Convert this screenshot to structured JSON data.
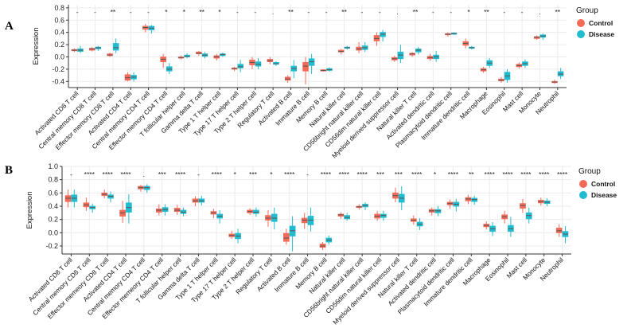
{
  "colors": {
    "control": "#f46a59",
    "disease": "#22bcd0",
    "grid": "#ebebeb",
    "axis": "#333333"
  },
  "chart_data": [
    {
      "type": "boxplot",
      "panel": "A",
      "ylabel": "Expression",
      "ylim": [
        -0.5,
        0.85
      ],
      "yticks": [
        -0.4,
        -0.2,
        0.0,
        0.2,
        0.4,
        0.6,
        0.8
      ],
      "ytick_labels": [
        "-0.4",
        "-0.2",
        "0.0",
        "0.2",
        "0.4",
        "0.6",
        "0.8"
      ],
      "legend": {
        "title": "Group",
        "entries": [
          "Control",
          "Disease"
        ]
      },
      "categories": [
        "Activated CD8 T cell",
        "Central memory CD8 T cell",
        "Effector memory CD8 T cell",
        "Activated CD4 T cell",
        "Central memory CD4 T cell",
        "Effector memory CD4 T cell",
        "T follicular helper cell",
        "Gamma delta T cell",
        "Type 1 T helper cell",
        "Type 17 T helper cell",
        "Type 2 T helper cell",
        "Regulatory T cell",
        "Activated B cell",
        "Immature B cell",
        "Memory B cell",
        "Natural killer cell",
        "CD56bright natural killer cell",
        "CD56dim natural killer cell",
        "Myeloid derived suppressor cell",
        "Natural killer T cell",
        "Activated dendritic cell",
        "Plasmacytoid dendritic cell",
        "Immature dendritic cell",
        "Macrophage",
        "Eosinophil",
        "Mast cell",
        "Monocyte",
        "Neutrophil"
      ],
      "significance": [
        "-",
        "-",
        "**",
        "-",
        "-",
        "*",
        "*",
        "**",
        "*",
        "-",
        "-",
        ".",
        "**",
        "-",
        "-",
        "**",
        "-",
        "-",
        ".",
        "**",
        "-",
        "-",
        "*",
        "**",
        "-",
        "-",
        ".",
        "**"
      ],
      "series": [
        {
          "name": "Control",
          "boxes": [
            [
              0.08,
              0.1,
              0.11,
              0.12,
              0.14
            ],
            [
              0.09,
              0.11,
              0.13,
              0.14,
              0.16
            ],
            [
              0.0,
              0.02,
              0.03,
              0.05,
              0.07
            ],
            [
              -0.4,
              -0.38,
              -0.34,
              -0.29,
              -0.25
            ],
            [
              0.4,
              0.45,
              0.48,
              0.5,
              0.54
            ],
            [
              -0.18,
              -0.08,
              -0.04,
              0.0,
              0.05
            ],
            [
              -0.04,
              -0.02,
              -0.01,
              0.0,
              0.02
            ],
            [
              0.02,
              0.05,
              0.06,
              0.08,
              0.1
            ],
            [
              -0.06,
              -0.02,
              0.0,
              0.02,
              0.05
            ],
            [
              -0.23,
              -0.2,
              -0.19,
              -0.18,
              -0.16
            ],
            [
              -0.2,
              -0.13,
              -0.09,
              -0.05,
              0.0
            ],
            [
              -0.12,
              -0.08,
              -0.06,
              -0.04,
              0.0
            ],
            [
              -0.42,
              -0.38,
              -0.36,
              -0.33,
              -0.3
            ],
            [
              -0.45,
              -0.23,
              -0.15,
              -0.09,
              0.0
            ],
            [
              -0.24,
              -0.23,
              -0.22,
              -0.21,
              -0.2
            ],
            [
              0.04,
              0.08,
              0.09,
              0.11,
              0.13
            ],
            [
              0.06,
              0.11,
              0.13,
              0.16,
              0.24
            ],
            [
              0.18,
              0.26,
              0.3,
              0.35,
              0.4
            ],
            [
              -0.08,
              -0.05,
              -0.03,
              -0.01,
              0.02
            ],
            [
              0.0,
              0.03,
              0.05,
              0.06,
              0.08
            ],
            [
              -0.06,
              -0.03,
              -0.01,
              0.01,
              0.05
            ],
            [
              0.33,
              0.36,
              0.37,
              0.38,
              0.4
            ],
            [
              0.14,
              0.19,
              0.22,
              0.25,
              0.3
            ],
            [
              -0.26,
              -0.23,
              -0.21,
              -0.19,
              -0.16
            ],
            [
              -0.42,
              -0.39,
              -0.38,
              -0.36,
              -0.33
            ],
            [
              -0.19,
              -0.16,
              -0.14,
              -0.12,
              -0.09
            ],
            [
              0.28,
              0.3,
              0.32,
              0.33,
              0.35
            ],
            [
              -0.44,
              -0.42,
              -0.41,
              -0.4,
              -0.37
            ]
          ]
        },
        {
          "name": "Disease",
          "boxes": [
            [
              0.06,
              0.09,
              0.11,
              0.13,
              0.18
            ],
            [
              0.1,
              0.13,
              0.15,
              0.16,
              0.18
            ],
            [
              0.06,
              0.11,
              0.15,
              0.22,
              0.3
            ],
            [
              -0.4,
              -0.36,
              -0.33,
              -0.3,
              -0.25
            ],
            [
              0.38,
              0.44,
              0.47,
              0.5,
              0.52
            ],
            [
              -0.28,
              -0.23,
              -0.2,
              -0.16,
              -0.1
            ],
            [
              -0.02,
              0.0,
              0.01,
              0.03,
              0.06
            ],
            [
              -0.02,
              0.01,
              0.03,
              0.05,
              0.08
            ],
            [
              0.0,
              0.02,
              0.04,
              0.05,
              0.07
            ],
            [
              -0.25,
              -0.18,
              -0.16,
              -0.12,
              -0.05
            ],
            [
              -0.2,
              -0.15,
              -0.12,
              -0.08,
              -0.02
            ],
            [
              -0.15,
              -0.12,
              -0.11,
              -0.09,
              -0.07
            ],
            [
              -0.35,
              -0.23,
              -0.19,
              -0.15,
              -0.05
            ],
            [
              -0.28,
              -0.14,
              -0.08,
              -0.03,
              0.05
            ],
            [
              -0.24,
              -0.22,
              -0.21,
              -0.19,
              -0.17
            ],
            [
              0.12,
              0.14,
              0.15,
              0.16,
              0.18
            ],
            [
              0.08,
              0.12,
              0.15,
              0.18,
              0.24
            ],
            [
              0.25,
              0.33,
              0.37,
              0.4,
              0.44
            ],
            [
              -0.1,
              -0.03,
              0.03,
              0.08,
              0.2
            ],
            [
              0.04,
              0.08,
              0.11,
              0.13,
              0.16
            ],
            [
              -0.08,
              -0.03,
              0.0,
              0.03,
              0.1
            ],
            [
              0.36,
              0.37,
              0.38,
              0.39,
              0.4
            ],
            [
              0.12,
              0.14,
              0.15,
              0.16,
              0.18
            ],
            [
              -0.18,
              -0.14,
              -0.1,
              -0.06,
              -0.02
            ],
            [
              -0.42,
              -0.37,
              -0.31,
              -0.25,
              -0.2
            ],
            [
              -0.18,
              -0.14,
              -0.11,
              -0.08,
              -0.04
            ],
            [
              0.28,
              0.32,
              0.34,
              0.36,
              0.38
            ],
            [
              -0.36,
              -0.31,
              -0.28,
              -0.24,
              -0.18
            ]
          ]
        }
      ]
    },
    {
      "type": "boxplot",
      "panel": "B",
      "ylabel": "Expression",
      "ylim": [
        -0.32,
        1.0
      ],
      "yticks": [
        -0.2,
        0.0,
        0.2,
        0.4,
        0.6,
        0.8,
        1.0
      ],
      "ytick_labels": [
        "-0.2",
        "0.0",
        "0.2",
        "0.4",
        "0.6",
        "0.8",
        "1.0"
      ],
      "legend": {
        "title": "Group",
        "entries": [
          "Control",
          "Disease"
        ]
      },
      "categories": [
        "Activated CD8 T cell",
        "Central memory CD8 T cell",
        "Effector memeory CD8 T cell",
        "Activated CD4 T cell",
        "Central memory CD4 T cell",
        "Effector memeory CD4 T cell",
        "T follicular helper cell",
        "Gamma delta T cell",
        "Type 1 T helper cell",
        "Type 17 T helper cell",
        "Type 2 T helper cell",
        "Regulatory T cell",
        "Activated B cell",
        "Immature B cell",
        "Memory B cell",
        "Natural killer cell",
        "CD56bright natural killer cell",
        "CD56dim natural killer cell",
        "Myeloid derived suppressor cell",
        "Natural killer T cell",
        "Activated dendritic cell",
        "Plasmacytoid dendritic cell",
        "Immature dendritic cell",
        "Macrophage",
        "Eosinophil",
        "Mast cell",
        "Monocyte",
        "Neutrophil"
      ],
      "significance": [
        "-",
        "****",
        "****",
        "****",
        ".",
        "***",
        "****",
        "-",
        "****",
        "*",
        "***",
        "*",
        "****",
        "-",
        "****",
        "****",
        "****",
        "***",
        "***",
        "****",
        "*",
        "****",
        "**",
        "****",
        "****",
        "****",
        "****",
        "****"
      ],
      "series": [
        {
          "name": "Control",
          "boxes": [
            [
              0.38,
              0.47,
              0.52,
              0.56,
              0.65
            ],
            [
              0.33,
              0.39,
              0.42,
              0.45,
              0.53
            ],
            [
              0.52,
              0.56,
              0.58,
              0.6,
              0.65
            ],
            [
              0.15,
              0.25,
              0.3,
              0.34,
              0.48
            ],
            [
              0.62,
              0.66,
              0.68,
              0.7,
              0.72
            ],
            [
              0.26,
              0.31,
              0.34,
              0.36,
              0.43
            ],
            [
              0.27,
              0.32,
              0.34,
              0.37,
              0.42
            ],
            [
              0.4,
              0.46,
              0.48,
              0.51,
              0.55
            ],
            [
              0.22,
              0.28,
              0.3,
              0.32,
              0.36
            ],
            [
              -0.09,
              -0.06,
              -0.04,
              -0.02,
              0.03
            ],
            [
              0.27,
              0.3,
              0.32,
              0.34,
              0.37
            ],
            [
              0.09,
              0.19,
              0.22,
              0.26,
              0.34
            ],
            [
              -0.18,
              -0.13,
              -0.08,
              -0.01,
              0.06
            ],
            [
              0.06,
              0.15,
              0.19,
              0.22,
              0.3
            ],
            [
              -0.26,
              -0.22,
              -0.2,
              -0.17,
              -0.14
            ],
            [
              0.21,
              0.25,
              0.27,
              0.28,
              0.31
            ],
            [
              0.35,
              0.38,
              0.39,
              0.4,
              0.43
            ],
            [
              0.18,
              0.22,
              0.25,
              0.28,
              0.33
            ],
            [
              0.46,
              0.52,
              0.56,
              0.6,
              0.68
            ],
            [
              0.12,
              0.17,
              0.19,
              0.21,
              0.26
            ],
            [
              0.26,
              0.31,
              0.33,
              0.35,
              0.38
            ],
            [
              0.36,
              0.42,
              0.44,
              0.46,
              0.5
            ],
            [
              0.43,
              0.48,
              0.51,
              0.53,
              0.57
            ],
            [
              0.05,
              0.09,
              0.11,
              0.13,
              0.17
            ],
            [
              0.14,
              0.21,
              0.24,
              0.27,
              0.33
            ],
            [
              0.3,
              0.37,
              0.41,
              0.44,
              0.51
            ],
            [
              0.41,
              0.45,
              0.47,
              0.49,
              0.53
            ],
            [
              -0.06,
              0.0,
              0.03,
              0.07,
              0.13
            ]
          ]
        },
        {
          "name": "Disease",
          "boxes": [
            [
              0.38,
              0.47,
              0.52,
              0.57,
              0.65
            ],
            [
              0.3,
              0.36,
              0.38,
              0.4,
              0.44
            ],
            [
              0.46,
              0.52,
              0.55,
              0.57,
              0.62
            ],
            [
              0.14,
              0.31,
              0.38,
              0.45,
              0.58
            ],
            [
              0.6,
              0.65,
              0.68,
              0.7,
              0.73
            ],
            [
              0.26,
              0.32,
              0.35,
              0.38,
              0.43
            ],
            [
              0.25,
              0.29,
              0.31,
              0.34,
              0.38
            ],
            [
              0.41,
              0.46,
              0.48,
              0.51,
              0.56
            ],
            [
              0.14,
              0.22,
              0.25,
              0.28,
              0.34
            ],
            [
              -0.16,
              -0.09,
              -0.05,
              -0.01,
              0.06
            ],
            [
              0.24,
              0.29,
              0.31,
              0.34,
              0.38
            ],
            [
              0.05,
              0.17,
              0.22,
              0.28,
              0.38
            ],
            [
              -0.28,
              -0.05,
              0.03,
              0.1,
              0.25
            ],
            [
              0.02,
              0.12,
              0.19,
              0.25,
              0.38
            ],
            [
              -0.18,
              -0.14,
              -0.11,
              -0.08,
              -0.04
            ],
            [
              0.18,
              0.21,
              0.23,
              0.26,
              0.3
            ],
            [
              0.34,
              0.39,
              0.41,
              0.43,
              0.46
            ],
            [
              0.18,
              0.23,
              0.26,
              0.28,
              0.33
            ],
            [
              0.34,
              0.46,
              0.52,
              0.58,
              0.7
            ],
            [
              0.04,
              0.1,
              0.13,
              0.16,
              0.22
            ],
            [
              0.25,
              0.3,
              0.33,
              0.35,
              0.4
            ],
            [
              0.32,
              0.4,
              0.43,
              0.46,
              0.51
            ],
            [
              0.42,
              0.47,
              0.5,
              0.52,
              0.56
            ],
            [
              -0.05,
              0.02,
              0.06,
              0.1,
              0.16
            ],
            [
              -0.06,
              0.02,
              0.06,
              0.11,
              0.24
            ],
            [
              0.14,
              0.21,
              0.26,
              0.3,
              0.38
            ],
            [
              0.4,
              0.44,
              0.46,
              0.48,
              0.52
            ],
            [
              -0.16,
              -0.06,
              -0.02,
              0.02,
              0.1
            ]
          ]
        }
      ]
    }
  ]
}
